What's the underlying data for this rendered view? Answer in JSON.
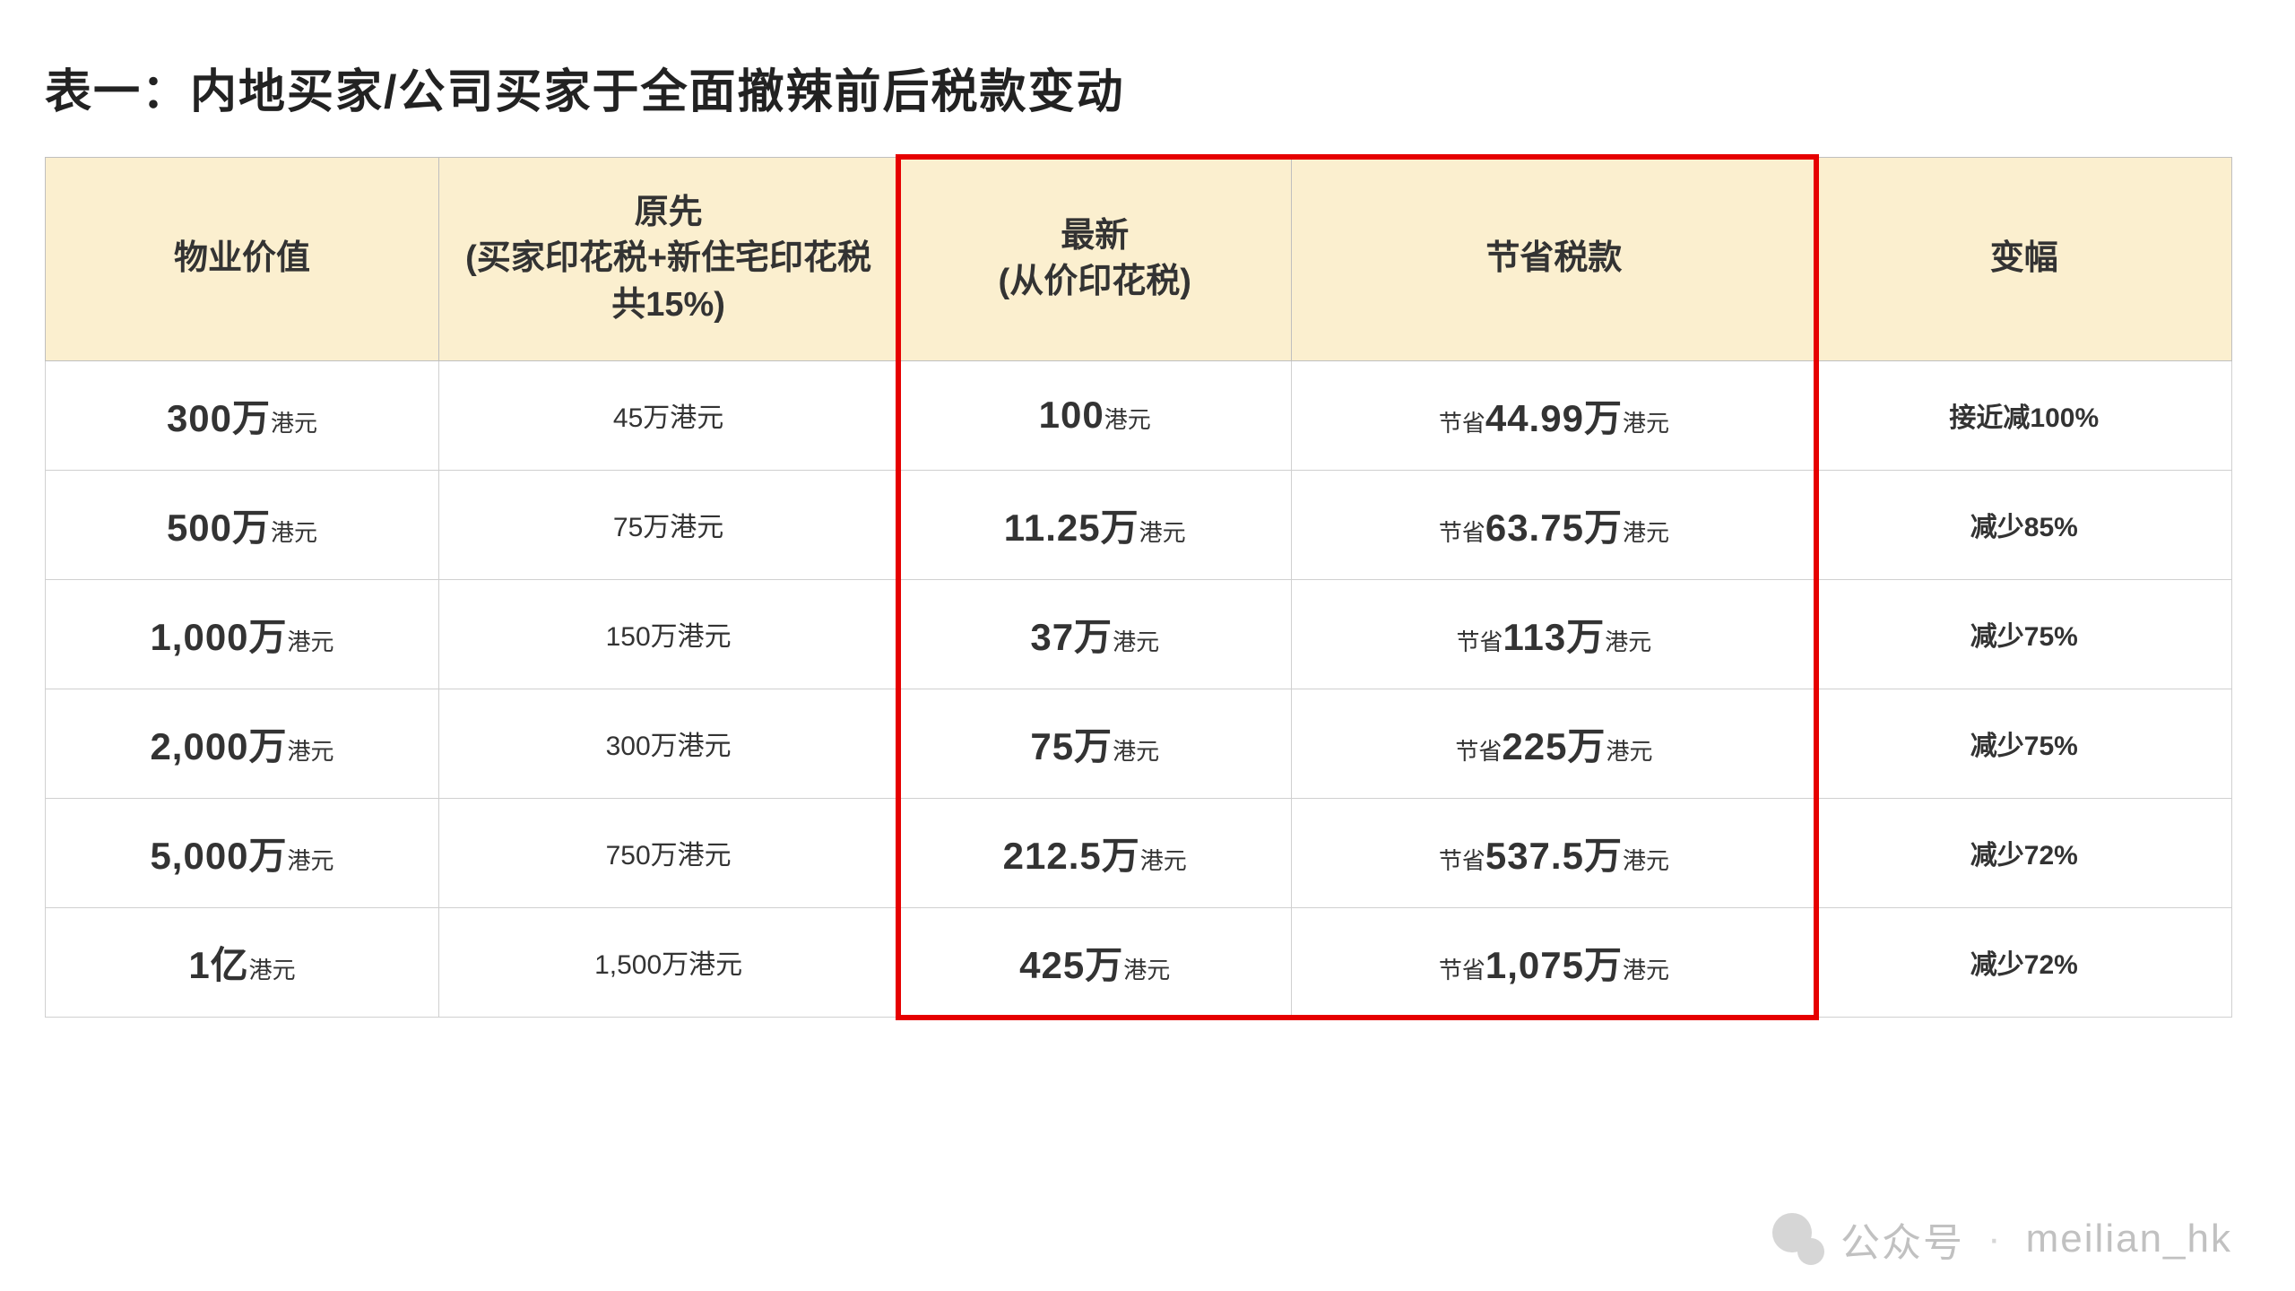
{
  "title": "表一：内地买家/公司买家于全面撤辣前后税款变动",
  "table": {
    "columns": {
      "property_value": "物业价值",
      "original_line1": "原先",
      "original_line2": "(买家印花税+新住宅印花税",
      "original_line3": "共15%)",
      "latest_line1": "最新",
      "latest_line2": "(从价印花税)",
      "saved": "节省税款",
      "change": "变幅"
    },
    "unit_hkd": "港元",
    "save_prefix": "节省",
    "rows": [
      {
        "value_big": "300万",
        "orig": "45万港元",
        "new_big": "100",
        "save_big": "44.99万",
        "change": "接近减100%"
      },
      {
        "value_big": "500万",
        "orig": "75万港元",
        "new_big": "11.25万",
        "save_big": "63.75万",
        "change": "减少85%"
      },
      {
        "value_big": "1,000万",
        "orig": "150万港元",
        "new_big": "37万",
        "save_big": "113万",
        "change": "减少75%"
      },
      {
        "value_big": "2,000万",
        "orig": "300万港元",
        "new_big": "75万",
        "save_big": "225万",
        "change": "减少75%"
      },
      {
        "value_big": "5,000万",
        "orig": "750万港元",
        "new_big": "212.5万",
        "save_big": "537.5万",
        "change": "减少72%"
      },
      {
        "value_big": "1亿",
        "orig": "1,500万港元",
        "new_big": "425万",
        "save_big": "1,075万",
        "change": "减少72%"
      }
    ],
    "styling": {
      "header_bg": "#fbefcf",
      "header_fontsize": 38,
      "cell_fontsize": 30,
      "big_num_fontsize": 42,
      "unit_fontsize": 26,
      "border_color": "#d0d0d0",
      "header_border_color": "#bfbfbf",
      "highlight_border_color": "#e60000",
      "highlight_border_width": 6,
      "column_widths_pct": [
        18,
        21,
        18,
        24,
        19
      ],
      "highlight_columns": [
        2,
        3
      ]
    }
  },
  "watermark": {
    "prefix": "公众号",
    "dot": "·",
    "handle": "meilian_hk",
    "color": "#b7b7b7",
    "fontsize": 44
  }
}
